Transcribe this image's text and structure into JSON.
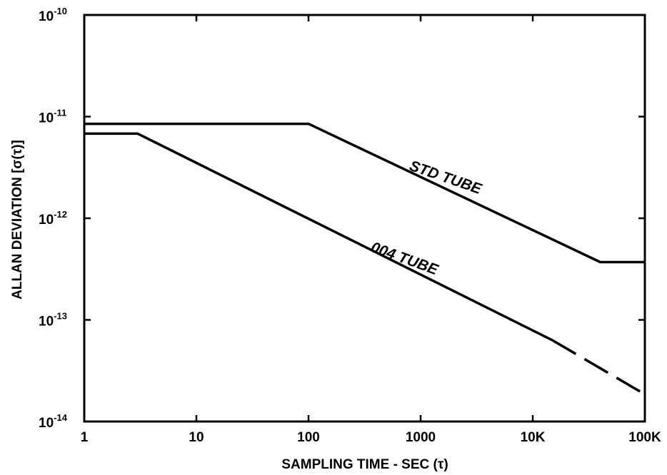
{
  "chart_data": {
    "type": "line",
    "x_scale": "log",
    "y_scale": "log",
    "xlim": [
      1,
      100000
    ],
    "ylim": [
      1e-14,
      1e-10
    ],
    "grid": false,
    "xlabel": "SAMPLING TIME - SEC (τ)",
    "ylabel": "ALLAN DEVIATION [σ(τ)]",
    "x_ticks": [
      1,
      10,
      100,
      1000,
      10000,
      100000
    ],
    "x_tick_labels": [
      "1",
      "10",
      "100",
      "1000",
      "10K",
      "100K"
    ],
    "y_ticks": [
      1e-14,
      1e-13,
      1e-12,
      1e-11,
      1e-10
    ],
    "y_tick_labels": [
      {
        "base": "10",
        "exp": "-14"
      },
      {
        "base": "10",
        "exp": "-13"
      },
      {
        "base": "10",
        "exp": "-12"
      },
      {
        "base": "10",
        "exp": "-11"
      },
      {
        "base": "10",
        "exp": "-10"
      }
    ],
    "series": [
      {
        "name": "STD TUBE",
        "color": "#000000",
        "segments": [
          {
            "style": "solid",
            "points": [
              [
                1,
                8.5e-12
              ],
              [
                100,
                8.5e-12
              ],
              [
                40000,
                3.7e-13
              ],
              [
                100000,
                3.7e-13
              ]
            ]
          }
        ]
      },
      {
        "name": "004 TUBE",
        "color": "#000000",
        "segments": [
          {
            "style": "solid",
            "points": [
              [
                1,
                6.8e-12
              ],
              [
                3,
                6.8e-12
              ],
              [
                15000,
                6.3e-14
              ]
            ]
          },
          {
            "style": "dashed",
            "points": [
              [
                15000,
                6.3e-14
              ],
              [
                100000,
                1.85e-14
              ]
            ]
          }
        ]
      }
    ]
  }
}
